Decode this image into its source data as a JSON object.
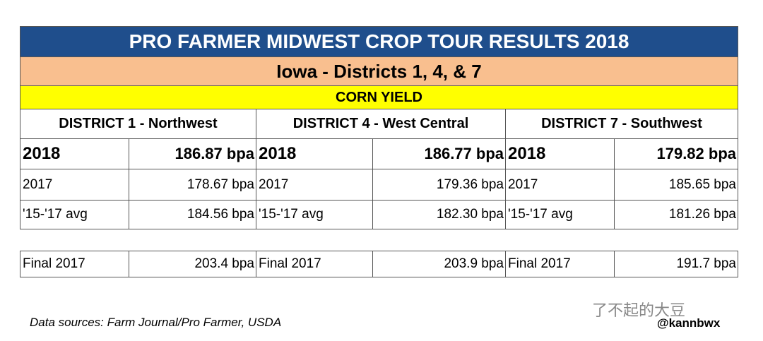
{
  "header": {
    "title": "PRO FARMER MIDWEST CROP TOUR RESULTS 2018",
    "subtitle": "Iowa - Districts 1, 4, & 7",
    "section": "CORN YIELD"
  },
  "districts": [
    {
      "name": "DISTRICT 1 - Northwest",
      "rows": [
        [
          "2018",
          "186.87 bpa"
        ],
        [
          "2017",
          "178.67 bpa"
        ],
        [
          "'15-'17 avg",
          "184.56 bpa"
        ]
      ],
      "final": [
        "Final 2017",
        "203.4 bpa"
      ]
    },
    {
      "name": "DISTRICT 4 - West Central",
      "rows": [
        [
          "2018",
          "186.77 bpa"
        ],
        [
          "2017",
          "179.36 bpa"
        ],
        [
          "'15-'17 avg",
          "182.30 bpa"
        ]
      ],
      "final": [
        "Final 2017",
        "203.9 bpa"
      ]
    },
    {
      "name": "DISTRICT 7 - Southwest",
      "rows": [
        [
          "2018",
          "179.82 bpa"
        ],
        [
          "2017",
          "185.65 bpa"
        ],
        [
          "'15-'17 avg",
          "181.26 bpa"
        ]
      ],
      "final": [
        "Final 2017",
        "191.7 bpa"
      ]
    }
  ],
  "footer": {
    "source": "Data sources: Farm Journal/Pro Farmer, USDA",
    "watermark": "了不起的大豆",
    "handle": "@kannbwx"
  }
}
